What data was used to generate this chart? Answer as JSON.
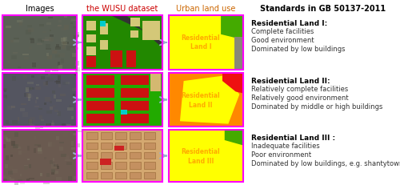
{
  "col_headers": [
    "Images",
    "the WUSU dataset",
    "Urban land use",
    "Standards in GB 50137-2011"
  ],
  "col_header_colors": [
    "#000000",
    "#cc0000",
    "#cc6600",
    "#000000"
  ],
  "land_types": [
    {
      "label": "Residential\nLand I",
      "bold": "Residential Land I:",
      "bullets": [
        "Complete facilities",
        "Good environment",
        "Dominated by low buildings"
      ],
      "text_color": "#ffaa00"
    },
    {
      "label": "Residential\nLand II",
      "bold": "Residential Land II:",
      "bullets": [
        "Relatively complete facilities",
        "Relatively good environment",
        "Dominated by middle or high buildings"
      ],
      "text_color": "#ffaa00"
    },
    {
      "label": "Residential\nLand III",
      "bold": "Residential Land III :",
      "bullets": [
        "Inadequate facilities",
        "Poor environment",
        "Dominated by low buildings, e.g. shantytowns"
      ],
      "text_color": "#ffaa00"
    }
  ],
  "background": "#ffffff",
  "border_color": "#ff00ff",
  "figsize": [
    5.0,
    2.31
  ],
  "dpi": 100
}
